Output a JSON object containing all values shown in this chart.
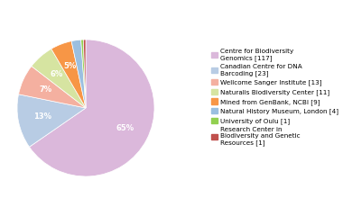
{
  "labels": [
    "Centre for Biodiversity\nGenomics [117]",
    "Canadian Centre for DNA\nBarcoding [23]",
    "Wellcome Sanger Institute [13]",
    "Naturalis Biodiversity Center [11]",
    "Mined from GenBank, NCBI [9]",
    "Natural History Museum, London [4]",
    "University of Oulu [1]",
    "Research Center in\nBiodiversity and Genetic\nResources [1]"
  ],
  "values": [
    117,
    23,
    13,
    11,
    9,
    4,
    1,
    1
  ],
  "colors": [
    "#dbb8db",
    "#b8cce4",
    "#f4b0a0",
    "#d6e4a1",
    "#f79646",
    "#9bbfe0",
    "#92d050",
    "#c0504d"
  ],
  "startangle": 90,
  "figsize": [
    3.8,
    2.4
  ],
  "dpi": 100
}
